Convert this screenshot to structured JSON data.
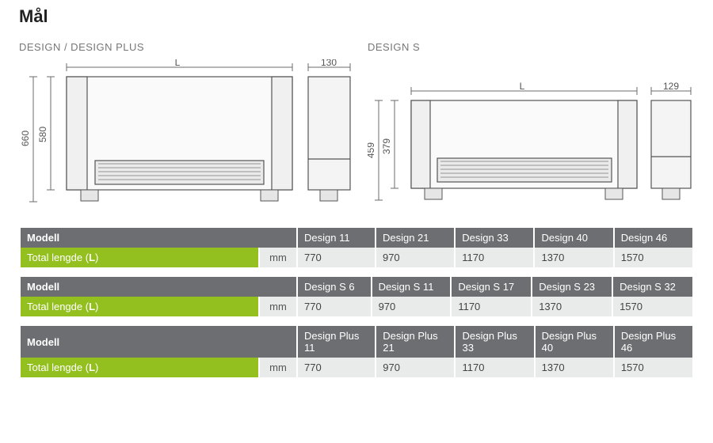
{
  "title": "Mål",
  "diagrams": {
    "left": {
      "label": "DESIGN / DESIGN PLUS",
      "height_outer": "660",
      "height_inner": "580",
      "length_label": "L",
      "depth": "130"
    },
    "right": {
      "label": "DESIGN S",
      "height_outer": "459",
      "height_inner": "379",
      "length_label": "L",
      "depth": "129"
    },
    "colors": {
      "stroke": "#555555",
      "fill": "#f3f3f3",
      "grille": "#777777",
      "dim": "#6b6b6b"
    }
  },
  "tables": [
    {
      "header_label": "Modell",
      "row_label": "Total lengde (L)",
      "unit": "mm",
      "columns": [
        "Design 11",
        "Design 21",
        "Design 33",
        "Design 40",
        "Design 46"
      ],
      "values": [
        "770",
        "970",
        "1170",
        "1370",
        "1570"
      ]
    },
    {
      "header_label": "Modell",
      "row_label": "Total lengde (L)",
      "unit": "mm",
      "columns": [
        "Design S 6",
        "Design S 11",
        "Design S 17",
        "Design S 23",
        "Design S 32"
      ],
      "values": [
        "770",
        "970",
        "1170",
        "1370",
        "1570"
      ]
    },
    {
      "header_label": "Modell",
      "row_label": "Total lengde (L)",
      "unit": "mm",
      "columns": [
        "Design Plus 11",
        "Design Plus 21",
        "Design Plus 33",
        "Design Plus 40",
        "Design Plus 46"
      ],
      "values": [
        "770",
        "970",
        "1170",
        "1370",
        "1570"
      ]
    }
  ],
  "table_colors": {
    "header_bg": "#6d6e71",
    "header_fg": "#ffffff",
    "green_bg": "#93c01f",
    "cell_bg": "#e9eaea"
  }
}
